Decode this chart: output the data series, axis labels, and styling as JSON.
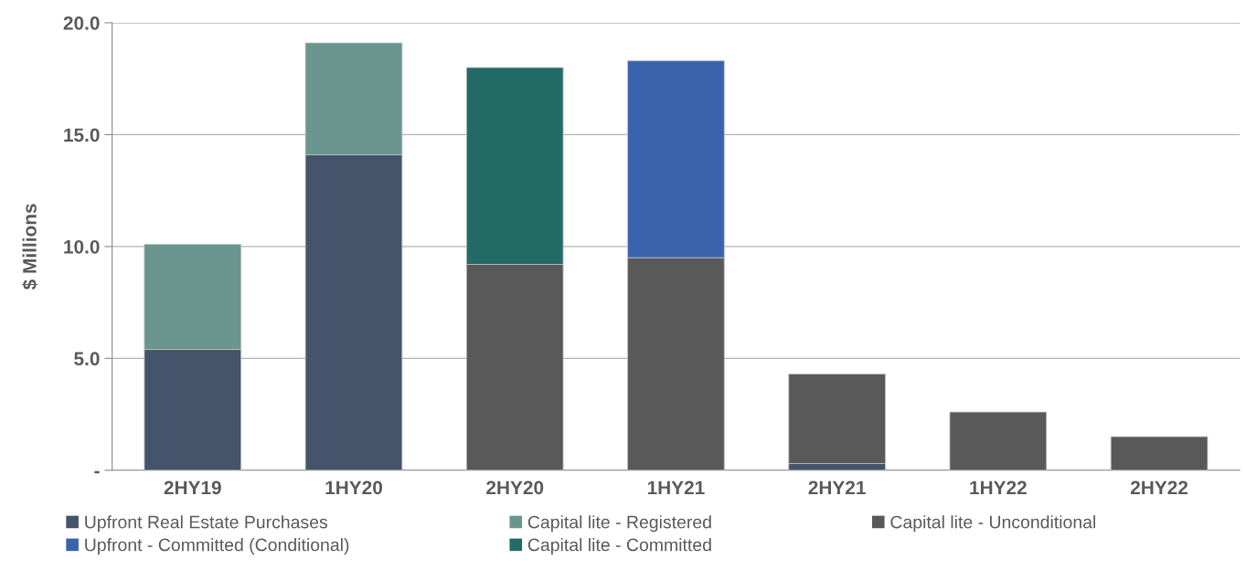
{
  "chart_data": {
    "type": "bar",
    "stacked": true,
    "ylabel": "$ Millions",
    "categories": [
      "2HY19",
      "1HY20",
      "2HY20",
      "1HY21",
      "2HY21",
      "1HY22",
      "2HY22"
    ],
    "series": [
      {
        "name": "Upfront Real Estate Purchases",
        "color": "#44546a",
        "values": [
          5.4,
          14.1,
          null,
          null,
          0.3,
          null,
          null
        ]
      },
      {
        "name": "Capital lite - Registered",
        "color": "#6a958f",
        "values": [
          4.7,
          5.0,
          null,
          null,
          null,
          null,
          null
        ]
      },
      {
        "name": "Capital lite - Unconditional",
        "color": "#595959",
        "values": [
          null,
          null,
          9.2,
          9.5,
          4.0,
          2.6,
          1.5
        ]
      },
      {
        "name": "Upfront - Committed (Conditional)",
        "color": "#3a63ad",
        "values": [
          null,
          null,
          null,
          8.8,
          null,
          null,
          null
        ]
      },
      {
        "name": "Capital lite - Committed",
        "color": "#246b67",
        "values": [
          null,
          null,
          8.8,
          null,
          null,
          null,
          null
        ]
      }
    ],
    "ylim": [
      0,
      20
    ],
    "yticks": [
      {
        "value": 0,
        "label": "-"
      },
      {
        "value": 5,
        "label": "5.0"
      },
      {
        "value": 10,
        "label": "10.0"
      },
      {
        "value": 15,
        "label": "15.0"
      },
      {
        "value": 20,
        "label": "20.0"
      }
    ],
    "grid": "y",
    "legend": "bottom"
  }
}
